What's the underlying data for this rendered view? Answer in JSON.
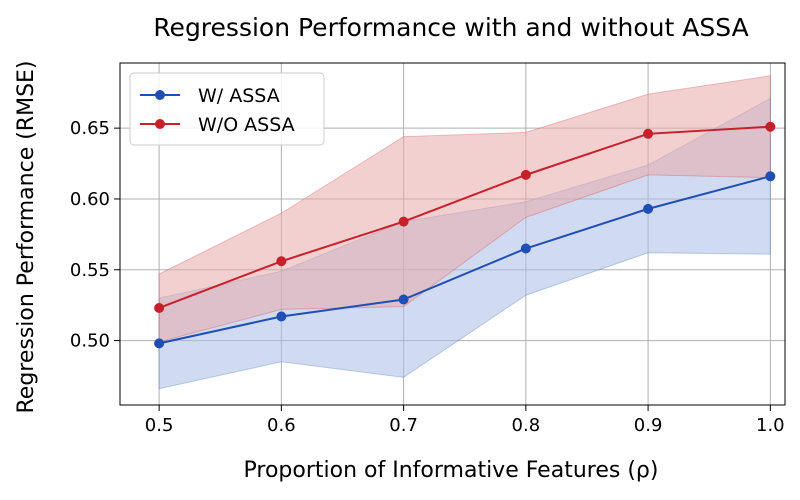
{
  "chart_data": {
    "type": "line",
    "title": "Regression Performance with and without ASSA",
    "xlabel": "Proportion of Informative Features (ρ)",
    "ylabel": "Regression Performance (RMSE)",
    "x": [
      0.5,
      0.6,
      0.7,
      0.8,
      0.9,
      1.0
    ],
    "x_tick_labels": [
      "0.5",
      "0.6",
      "0.7",
      "0.8",
      "0.9",
      "1.0"
    ],
    "y_ticks": [
      0.5,
      0.55,
      0.6,
      0.65
    ],
    "y_tick_labels": [
      "0.50",
      "0.55",
      "0.60",
      "0.65"
    ],
    "xlim": [
      0.468,
      1.012
    ],
    "ylim": [
      0.4545,
      0.696
    ],
    "grid": true,
    "legend_position": "top-left",
    "series": [
      {
        "name": "W/ ASSA",
        "color": "#1f4eb5",
        "band_color": "#a9bde6",
        "values": [
          0.498,
          0.517,
          0.529,
          0.565,
          0.593,
          0.616
        ],
        "lower": [
          0.466,
          0.485,
          0.474,
          0.532,
          0.562,
          0.561
        ],
        "upper": [
          0.53,
          0.549,
          0.584,
          0.598,
          0.624,
          0.671
        ]
      },
      {
        "name": "W/O ASSA",
        "color": "#c8202a",
        "band_color": "#e9aaaa",
        "values": [
          0.523,
          0.556,
          0.584,
          0.617,
          0.646,
          0.651
        ],
        "lower": [
          0.499,
          0.522,
          0.524,
          0.587,
          0.617,
          0.615
        ],
        "upper": [
          0.547,
          0.59,
          0.644,
          0.647,
          0.674,
          0.687
        ]
      }
    ]
  }
}
